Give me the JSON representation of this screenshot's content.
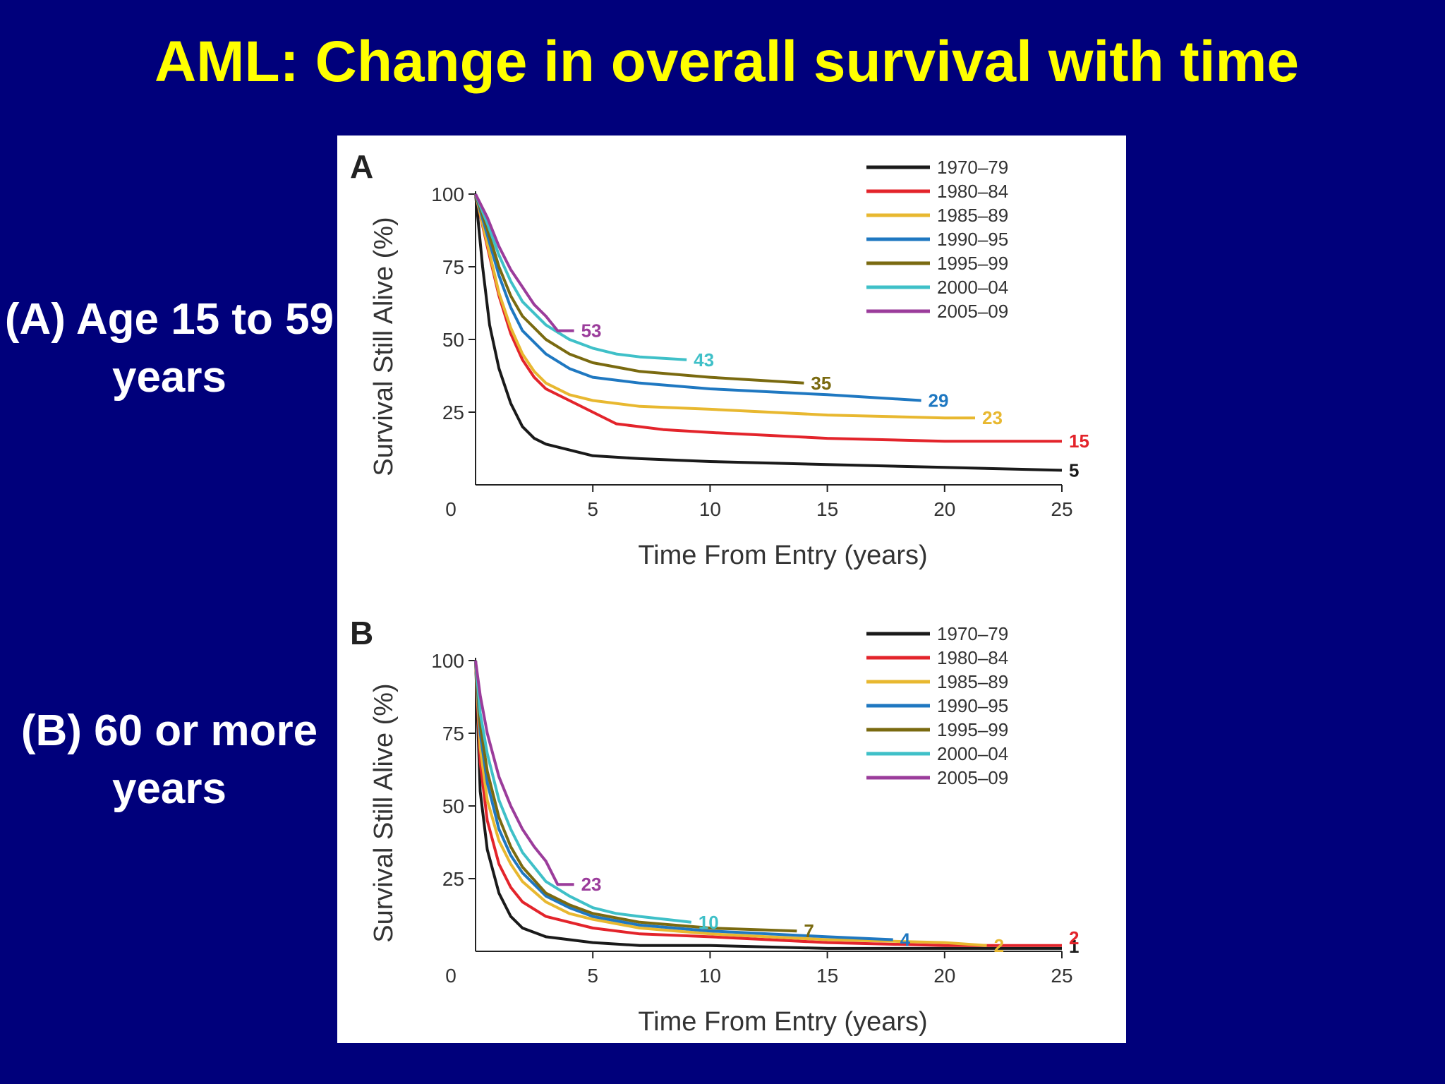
{
  "slide": {
    "title": "AML: Change in overall survival with time",
    "label_a": "(A) Age 15 to 59 years",
    "label_b": "(B) 60 or more years"
  },
  "colors": {
    "background": "#00007b",
    "title": "#ffff00",
    "1970-79": "#1a1a1a",
    "1980-84": "#e3242b",
    "1985-89": "#e8b830",
    "1990-95": "#1f78c1",
    "1995-99": "#7a6a10",
    "2000-04": "#3fc0c8",
    "2005-09": "#9b3c9b"
  },
  "chart_data": [
    {
      "type": "line",
      "panel_letter": "A",
      "xlabel": "Time From Entry (years)",
      "ylabel": "Survival Still Alive (%)",
      "xlim": [
        0,
        25
      ],
      "ylim": [
        0,
        100
      ],
      "x_ticks": [
        0,
        5,
        10,
        15,
        20,
        25
      ],
      "y_ticks": [
        25,
        50,
        75,
        100
      ],
      "grid": false,
      "legend_position": "top-right",
      "series": [
        {
          "name": "1970–79",
          "color": "#1a1a1a",
          "end_label": "5",
          "x": [
            0,
            0.3,
            0.6,
            1,
            1.5,
            2,
            2.5,
            3,
            4,
            5,
            7,
            10,
            15,
            20,
            25
          ],
          "y": [
            100,
            75,
            55,
            40,
            28,
            20,
            16,
            14,
            12,
            10,
            9,
            8,
            7,
            6,
            5
          ]
        },
        {
          "name": "1980–84",
          "color": "#e3242b",
          "end_label": "15",
          "x": [
            0,
            0.5,
            1,
            1.5,
            2,
            2.5,
            3,
            4,
            5,
            6,
            8,
            10,
            15,
            20,
            25
          ],
          "y": [
            100,
            82,
            65,
            52,
            43,
            37,
            33,
            29,
            25,
            21,
            19,
            18,
            16,
            15,
            15
          ]
        },
        {
          "name": "1985–89",
          "color": "#e8b830",
          "end_label": "23",
          "x": [
            0,
            0.5,
            1,
            1.5,
            2,
            2.5,
            3,
            4,
            5,
            7,
            10,
            15,
            20,
            21.3
          ],
          "y": [
            100,
            83,
            66,
            54,
            45,
            39,
            35,
            31,
            29,
            27,
            26,
            24,
            23,
            23
          ]
        },
        {
          "name": "1990–95",
          "color": "#1f78c1",
          "end_label": "29",
          "x": [
            0,
            0.5,
            1,
            1.5,
            2,
            3,
            4,
            5,
            7,
            10,
            15,
            19
          ],
          "y": [
            100,
            86,
            72,
            61,
            53,
            45,
            40,
            37,
            35,
            33,
            31,
            29
          ]
        },
        {
          "name": "1995–99",
          "color": "#7a6a10",
          "end_label": "35",
          "x": [
            0,
            0.5,
            1,
            1.5,
            2,
            3,
            4,
            5,
            7,
            10,
            14
          ],
          "y": [
            100,
            88,
            75,
            65,
            58,
            50,
            45,
            42,
            39,
            37,
            35
          ]
        },
        {
          "name": "2000–04",
          "color": "#3fc0c8",
          "end_label": "43",
          "x": [
            0,
            0.5,
            1,
            1.5,
            2,
            3,
            4,
            5,
            6,
            7,
            9
          ],
          "y": [
            100,
            90,
            79,
            70,
            63,
            55,
            50,
            47,
            45,
            44,
            43
          ]
        },
        {
          "name": "2005–09",
          "color": "#9b3c9b",
          "end_label": "53",
          "x": [
            0,
            0.5,
            1,
            1.5,
            2,
            2.5,
            3,
            3.5,
            4.2
          ],
          "y": [
            100,
            92,
            82,
            74,
            68,
            62,
            58,
            53,
            53
          ]
        }
      ]
    },
    {
      "type": "line",
      "panel_letter": "B",
      "xlabel": "Time From Entry (years)",
      "ylabel": "Survival Still Alive (%)",
      "xlim": [
        0,
        25
      ],
      "ylim": [
        0,
        100
      ],
      "x_ticks": [
        0,
        5,
        10,
        15,
        20,
        25
      ],
      "y_ticks": [
        25,
        50,
        75,
        100
      ],
      "grid": false,
      "legend_position": "top-right",
      "series": [
        {
          "name": "1970–79",
          "color": "#1a1a1a",
          "end_label": "1",
          "x": [
            0,
            0.2,
            0.5,
            1,
            1.5,
            2,
            3,
            4,
            5,
            7,
            10,
            15,
            20,
            25
          ],
          "y": [
            100,
            55,
            35,
            20,
            12,
            8,
            5,
            4,
            3,
            2,
            2,
            1,
            1,
            1
          ]
        },
        {
          "name": "1980–84",
          "color": "#e3242b",
          "end_label": "2",
          "x": [
            0,
            0.2,
            0.5,
            1,
            1.5,
            2,
            3,
            4,
            5,
            7,
            10,
            15,
            20,
            25
          ],
          "y": [
            100,
            65,
            45,
            30,
            22,
            17,
            12,
            10,
            8,
            6,
            5,
            3,
            2,
            2
          ]
        },
        {
          "name": "1985–89",
          "color": "#e8b830",
          "end_label": "2",
          "x": [
            0,
            0.2,
            0.5,
            1,
            1.5,
            2,
            3,
            4,
            5,
            7,
            10,
            15,
            20,
            21.8
          ],
          "y": [
            100,
            70,
            52,
            38,
            30,
            24,
            17,
            13,
            11,
            8,
            6,
            4,
            3,
            2
          ]
        },
        {
          "name": "1990–95",
          "color": "#1f78c1",
          "end_label": "4",
          "x": [
            0,
            0.2,
            0.5,
            1,
            1.5,
            2,
            3,
            4,
            5,
            7,
            10,
            15,
            17.8
          ],
          "y": [
            100,
            75,
            58,
            42,
            33,
            27,
            19,
            15,
            12,
            9,
            7,
            5,
            4
          ]
        },
        {
          "name": "1995–99",
          "color": "#7a6a10",
          "end_label": "7",
          "x": [
            0,
            0.2,
            0.5,
            1,
            1.5,
            2,
            3,
            4,
            5,
            7,
            10,
            13.7
          ],
          "y": [
            100,
            78,
            62,
            46,
            36,
            29,
            20,
            16,
            13,
            10,
            8,
            7
          ]
        },
        {
          "name": "2000–04",
          "color": "#3fc0c8",
          "end_label": "10",
          "x": [
            0,
            0.2,
            0.5,
            1,
            1.5,
            2,
            3,
            4,
            5,
            6,
            7,
            9.2
          ],
          "y": [
            100,
            82,
            68,
            52,
            42,
            34,
            24,
            19,
            15,
            13,
            12,
            10
          ]
        },
        {
          "name": "2005–09",
          "color": "#9b3c9b",
          "end_label": "23",
          "x": [
            0,
            0.2,
            0.5,
            1,
            1.5,
            2,
            2.5,
            3,
            3.5,
            4.2
          ],
          "y": [
            100,
            88,
            75,
            60,
            50,
            42,
            36,
            31,
            23,
            23
          ]
        }
      ]
    }
  ]
}
